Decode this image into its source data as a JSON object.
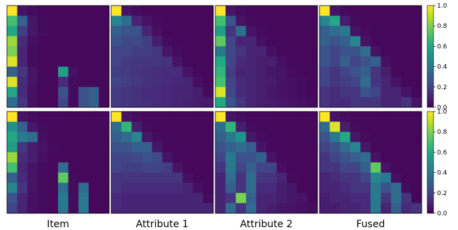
{
  "chart_data": {
    "type": "heatmap",
    "colormap": "viridis",
    "value_range": [
      0,
      1
    ],
    "grid_size": 10,
    "column_labels": [
      "Item",
      "Attribute 1",
      "Attribute 2",
      "Fused"
    ],
    "colorbar_ticks": [
      "0.0",
      "0.2",
      "0.4",
      "0.6",
      "0.8",
      "1.0"
    ],
    "panels": [
      {
        "row": 0,
        "col": 0,
        "values": [
          [
            1.0,
            0.05,
            0.03,
            0.02,
            0.02,
            0.02,
            0.02,
            0.02,
            0.02,
            0.02
          ],
          [
            0.7,
            0.3,
            0.06,
            0.03,
            0.02,
            0.02,
            0.02,
            0.02,
            0.02,
            0.02
          ],
          [
            0.6,
            0.18,
            0.06,
            0.03,
            0.02,
            0.02,
            0.02,
            0.02,
            0.02,
            0.02
          ],
          [
            0.85,
            0.12,
            0.04,
            0.02,
            0.02,
            0.02,
            0.02,
            0.02,
            0.02,
            0.02
          ],
          [
            0.8,
            0.1,
            0.03,
            0.02,
            0.02,
            0.02,
            0.02,
            0.02,
            0.02,
            0.02
          ],
          [
            0.95,
            0.1,
            0.03,
            0.02,
            0.02,
            0.02,
            0.02,
            0.02,
            0.02,
            0.02
          ],
          [
            0.3,
            0.15,
            0.05,
            0.02,
            0.02,
            0.55,
            0.04,
            0.02,
            0.02,
            0.02
          ],
          [
            0.95,
            0.12,
            0.05,
            0.02,
            0.02,
            0.12,
            0.03,
            0.02,
            0.02,
            0.02
          ],
          [
            0.6,
            0.12,
            0.04,
            0.02,
            0.02,
            0.25,
            0.03,
            0.25,
            0.3,
            0.02
          ],
          [
            0.35,
            0.15,
            0.04,
            0.02,
            0.02,
            0.2,
            0.03,
            0.25,
            0.3,
            0.02
          ]
        ]
      },
      {
        "row": 0,
        "col": 1,
        "values": [
          [
            1.0,
            0.05,
            0.03,
            0.02,
            0.02,
            0.02,
            0.02,
            0.02,
            0.02,
            0.02
          ],
          [
            0.45,
            0.35,
            0.1,
            0.05,
            0.03,
            0.02,
            0.02,
            0.02,
            0.02,
            0.02
          ],
          [
            0.3,
            0.25,
            0.25,
            0.1,
            0.04,
            0.02,
            0.02,
            0.02,
            0.02,
            0.02
          ],
          [
            0.25,
            0.22,
            0.22,
            0.18,
            0.08,
            0.03,
            0.02,
            0.02,
            0.02,
            0.02
          ],
          [
            0.2,
            0.2,
            0.18,
            0.18,
            0.16,
            0.06,
            0.03,
            0.02,
            0.02,
            0.02
          ],
          [
            0.2,
            0.17,
            0.16,
            0.16,
            0.15,
            0.14,
            0.05,
            0.02,
            0.02,
            0.02
          ],
          [
            0.18,
            0.17,
            0.15,
            0.14,
            0.13,
            0.12,
            0.12,
            0.05,
            0.02,
            0.02
          ],
          [
            0.2,
            0.18,
            0.16,
            0.14,
            0.13,
            0.12,
            0.11,
            0.1,
            0.04,
            0.02
          ],
          [
            0.17,
            0.15,
            0.14,
            0.12,
            0.12,
            0.11,
            0.1,
            0.1,
            0.08,
            0.03
          ],
          [
            0.17,
            0.15,
            0.14,
            0.13,
            0.12,
            0.11,
            0.1,
            0.09,
            0.08,
            0.07
          ]
        ]
      },
      {
        "row": 0,
        "col": 2,
        "values": [
          [
            1.0,
            0.05,
            0.03,
            0.02,
            0.02,
            0.02,
            0.02,
            0.02,
            0.02,
            0.02
          ],
          [
            0.7,
            0.25,
            0.05,
            0.03,
            0.02,
            0.02,
            0.02,
            0.02,
            0.02,
            0.02
          ],
          [
            0.55,
            0.15,
            0.35,
            0.05,
            0.03,
            0.02,
            0.02,
            0.02,
            0.02,
            0.02
          ],
          [
            0.75,
            0.2,
            0.1,
            0.1,
            0.04,
            0.02,
            0.02,
            0.02,
            0.02,
            0.02
          ],
          [
            0.4,
            0.2,
            0.15,
            0.1,
            0.1,
            0.04,
            0.02,
            0.02,
            0.02,
            0.02
          ],
          [
            0.6,
            0.2,
            0.12,
            0.1,
            0.08,
            0.08,
            0.04,
            0.02,
            0.02,
            0.02
          ],
          [
            0.65,
            0.18,
            0.1,
            0.1,
            0.08,
            0.06,
            0.05,
            0.03,
            0.02,
            0.02
          ],
          [
            0.7,
            0.2,
            0.12,
            0.1,
            0.08,
            0.07,
            0.05,
            0.04,
            0.03,
            0.02
          ],
          [
            0.95,
            0.22,
            0.12,
            0.1,
            0.08,
            0.06,
            0.05,
            0.04,
            0.03,
            0.02
          ],
          [
            0.6,
            0.25,
            0.15,
            0.1,
            0.08,
            0.07,
            0.06,
            0.05,
            0.04,
            0.03
          ]
        ]
      },
      {
        "row": 0,
        "col": 3,
        "values": [
          [
            1.0,
            0.05,
            0.03,
            0.02,
            0.02,
            0.02,
            0.02,
            0.02,
            0.02,
            0.02
          ],
          [
            0.45,
            0.6,
            0.08,
            0.03,
            0.02,
            0.02,
            0.02,
            0.02,
            0.02,
            0.02
          ],
          [
            0.3,
            0.35,
            0.4,
            0.05,
            0.03,
            0.02,
            0.02,
            0.02,
            0.02,
            0.02
          ],
          [
            0.3,
            0.25,
            0.3,
            0.45,
            0.05,
            0.02,
            0.02,
            0.02,
            0.02,
            0.02
          ],
          [
            0.25,
            0.2,
            0.25,
            0.25,
            0.35,
            0.05,
            0.02,
            0.02,
            0.02,
            0.02
          ],
          [
            0.25,
            0.2,
            0.3,
            0.2,
            0.25,
            0.3,
            0.04,
            0.02,
            0.02,
            0.02
          ],
          [
            0.2,
            0.15,
            0.2,
            0.25,
            0.3,
            0.15,
            0.08,
            0.02,
            0.02,
            0.02
          ],
          [
            0.2,
            0.15,
            0.18,
            0.2,
            0.35,
            0.15,
            0.1,
            0.05,
            0.02,
            0.02
          ],
          [
            0.15,
            0.12,
            0.15,
            0.15,
            0.25,
            0.2,
            0.1,
            0.1,
            0.05,
            0.02
          ],
          [
            0.15,
            0.12,
            0.12,
            0.15,
            0.15,
            0.15,
            0.1,
            0.1,
            0.15,
            0.05
          ]
        ]
      },
      {
        "row": 1,
        "col": 0,
        "values": [
          [
            1.0,
            0.05,
            0.03,
            0.02,
            0.02,
            0.02,
            0.02,
            0.02,
            0.02,
            0.02
          ],
          [
            0.5,
            0.3,
            0.06,
            0.03,
            0.02,
            0.02,
            0.02,
            0.02,
            0.02,
            0.02
          ],
          [
            0.6,
            0.4,
            0.35,
            0.04,
            0.02,
            0.02,
            0.02,
            0.02,
            0.02,
            0.02
          ],
          [
            0.55,
            0.15,
            0.08,
            0.05,
            0.03,
            0.02,
            0.02,
            0.02,
            0.02,
            0.02
          ],
          [
            0.85,
            0.12,
            0.08,
            0.04,
            0.02,
            0.02,
            0.02,
            0.02,
            0.02,
            0.02
          ],
          [
            0.7,
            0.1,
            0.05,
            0.03,
            0.02,
            0.35,
            0.02,
            0.02,
            0.02,
            0.02
          ],
          [
            0.3,
            0.12,
            0.05,
            0.03,
            0.02,
            0.75,
            0.03,
            0.02,
            0.02,
            0.02
          ],
          [
            0.45,
            0.15,
            0.05,
            0.03,
            0.02,
            0.35,
            0.03,
            0.35,
            0.02,
            0.02
          ],
          [
            0.25,
            0.1,
            0.04,
            0.03,
            0.02,
            0.4,
            0.03,
            0.4,
            0.02,
            0.02
          ],
          [
            0.2,
            0.1,
            0.04,
            0.03,
            0.02,
            0.4,
            0.03,
            0.4,
            0.02,
            0.02
          ]
        ]
      },
      {
        "row": 1,
        "col": 1,
        "values": [
          [
            1.0,
            0.05,
            0.03,
            0.02,
            0.02,
            0.02,
            0.02,
            0.02,
            0.02,
            0.02
          ],
          [
            0.35,
            0.65,
            0.08,
            0.03,
            0.02,
            0.02,
            0.02,
            0.02,
            0.02,
            0.02
          ],
          [
            0.3,
            0.35,
            0.45,
            0.06,
            0.03,
            0.02,
            0.02,
            0.02,
            0.02,
            0.02
          ],
          [
            0.25,
            0.25,
            0.3,
            0.3,
            0.06,
            0.02,
            0.02,
            0.02,
            0.02,
            0.02
          ],
          [
            0.2,
            0.2,
            0.22,
            0.25,
            0.22,
            0.05,
            0.02,
            0.02,
            0.02,
            0.02
          ],
          [
            0.2,
            0.18,
            0.18,
            0.2,
            0.2,
            0.18,
            0.05,
            0.02,
            0.02,
            0.02
          ],
          [
            0.15,
            0.15,
            0.15,
            0.15,
            0.15,
            0.15,
            0.15,
            0.04,
            0.02,
            0.02
          ],
          [
            0.15,
            0.12,
            0.12,
            0.12,
            0.12,
            0.12,
            0.12,
            0.1,
            0.04,
            0.02
          ],
          [
            0.12,
            0.1,
            0.1,
            0.1,
            0.1,
            0.1,
            0.1,
            0.1,
            0.1,
            0.03
          ],
          [
            0.12,
            0.1,
            0.1,
            0.1,
            0.1,
            0.1,
            0.1,
            0.1,
            0.1,
            0.1
          ]
        ]
      },
      {
        "row": 1,
        "col": 2,
        "values": [
          [
            1.0,
            0.05,
            0.03,
            0.02,
            0.02,
            0.02,
            0.02,
            0.02,
            0.02,
            0.02
          ],
          [
            0.35,
            0.65,
            0.08,
            0.03,
            0.02,
            0.02,
            0.02,
            0.02,
            0.02,
            0.02
          ],
          [
            0.3,
            0.4,
            0.5,
            0.06,
            0.03,
            0.02,
            0.02,
            0.02,
            0.02,
            0.02
          ],
          [
            0.25,
            0.3,
            0.35,
            0.3,
            0.05,
            0.02,
            0.02,
            0.02,
            0.02,
            0.02
          ],
          [
            0.2,
            0.4,
            0.25,
            0.25,
            0.3,
            0.05,
            0.02,
            0.02,
            0.02,
            0.02
          ],
          [
            0.15,
            0.4,
            0.2,
            0.3,
            0.2,
            0.2,
            0.04,
            0.02,
            0.02,
            0.02
          ],
          [
            0.1,
            0.35,
            0.15,
            0.35,
            0.15,
            0.15,
            0.1,
            0.03,
            0.02,
            0.02
          ],
          [
            0.1,
            0.3,
            0.15,
            0.35,
            0.12,
            0.12,
            0.08,
            0.06,
            0.02,
            0.02
          ],
          [
            0.1,
            0.15,
            0.8,
            0.3,
            0.1,
            0.1,
            0.08,
            0.06,
            0.05,
            0.02
          ],
          [
            0.1,
            0.35,
            0.15,
            0.35,
            0.1,
            0.08,
            0.06,
            0.05,
            0.04,
            0.03
          ]
        ]
      },
      {
        "row": 1,
        "col": 3,
        "values": [
          [
            1.0,
            0.05,
            0.03,
            0.02,
            0.02,
            0.02,
            0.02,
            0.02,
            0.02,
            0.02
          ],
          [
            0.35,
            0.95,
            0.08,
            0.03,
            0.02,
            0.02,
            0.02,
            0.02,
            0.02,
            0.02
          ],
          [
            0.25,
            0.4,
            0.6,
            0.06,
            0.03,
            0.02,
            0.02,
            0.02,
            0.02,
            0.02
          ],
          [
            0.2,
            0.25,
            0.35,
            0.45,
            0.06,
            0.02,
            0.02,
            0.02,
            0.02,
            0.02
          ],
          [
            0.15,
            0.2,
            0.25,
            0.3,
            0.35,
            0.05,
            0.02,
            0.02,
            0.02,
            0.02
          ],
          [
            0.15,
            0.15,
            0.2,
            0.2,
            0.3,
            0.75,
            0.05,
            0.02,
            0.02,
            0.02
          ],
          [
            0.1,
            0.12,
            0.15,
            0.15,
            0.2,
            0.45,
            0.4,
            0.04,
            0.02,
            0.02
          ],
          [
            0.1,
            0.1,
            0.12,
            0.15,
            0.15,
            0.4,
            0.25,
            0.35,
            0.03,
            0.02
          ],
          [
            0.08,
            0.1,
            0.1,
            0.12,
            0.12,
            0.4,
            0.15,
            0.35,
            0.15,
            0.02
          ],
          [
            0.08,
            0.08,
            0.1,
            0.1,
            0.12,
            0.4,
            0.1,
            0.3,
            0.12,
            0.15
          ]
        ]
      }
    ]
  }
}
